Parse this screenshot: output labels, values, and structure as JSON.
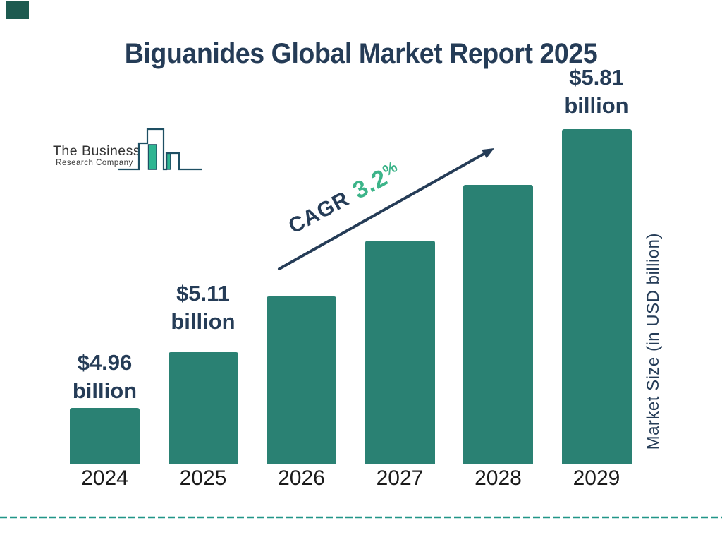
{
  "page": {
    "title": "Biguanides Global Market Report 2025"
  },
  "logo": {
    "name_line1": "The Business",
    "name_line2": "Research Company"
  },
  "cagr": {
    "label": "CAGR",
    "value": "3.2",
    "percent_sign": "%"
  },
  "right_axis_label": "Market Size (in USD billion)",
  "colors": {
    "navy_text": "#253C57",
    "bar_teal": "#2A8173",
    "accent_green": "#3CB489",
    "dashed_line_teal": "#219688",
    "logo_outline": "#1E4F63",
    "logo_green": "#2FB592",
    "corner_square": "#1D5A50",
    "year_label_text": "#1B1B1B"
  },
  "chart_data": {
    "type": "bar",
    "title": "Biguanides Global Market Report 2025",
    "categories": [
      "2024",
      "2025",
      "2026",
      "2027",
      "2028",
      "2029"
    ],
    "values": [
      4.96,
      5.11,
      null,
      null,
      null,
      5.81
    ],
    "unit": "USD billion",
    "ylabel": "Market Size (in USD billion)",
    "xlabel": "",
    "grid": "off",
    "legend": "none",
    "bar_color": "#2A8173",
    "cagr_annotation": "CAGR 3.2%",
    "value_labels": [
      {
        "idx": 0,
        "line1": "$4.96",
        "line2": "billion"
      },
      {
        "idx": 1,
        "line1": "$5.11",
        "line2": "billion"
      },
      {
        "idx": 5,
        "line1": "$5.81",
        "line2": "billion"
      }
    ]
  }
}
